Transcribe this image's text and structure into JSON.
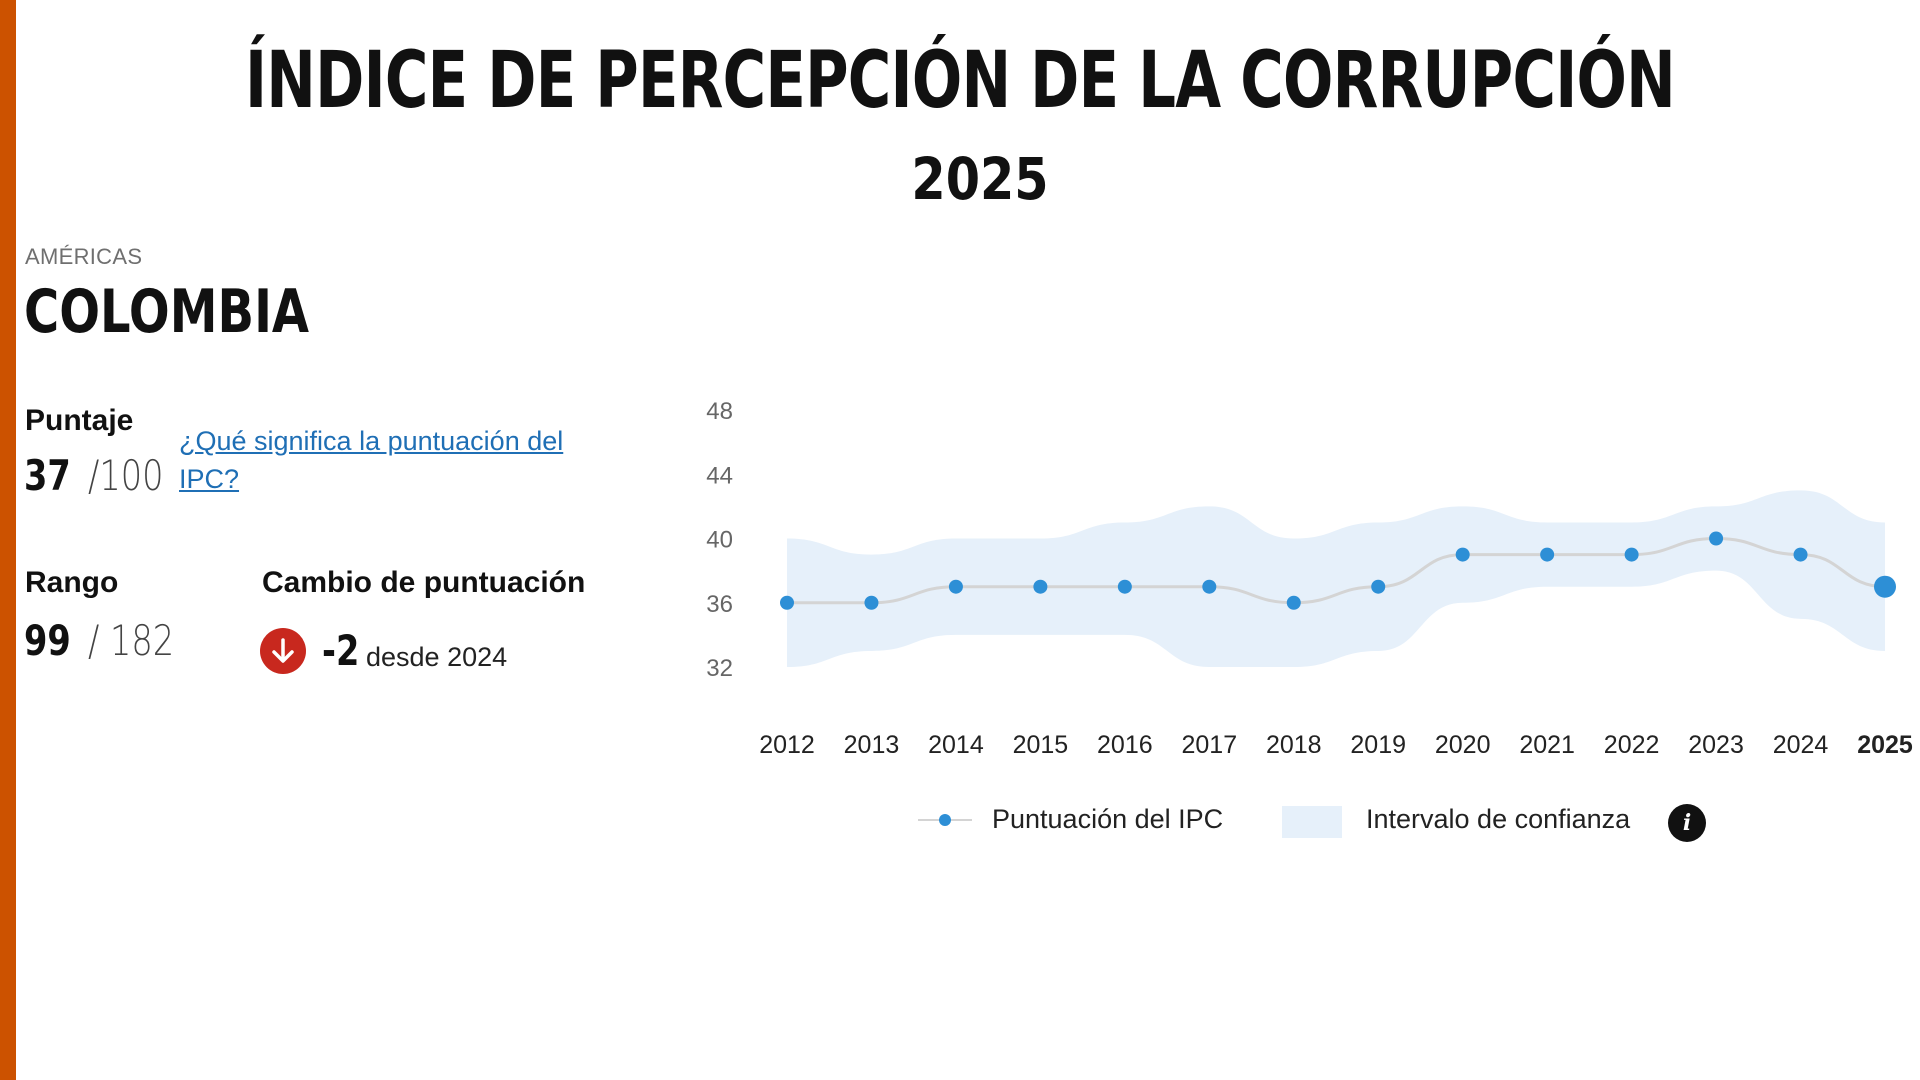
{
  "header": {
    "title": "ÍNDICE DE PERCEPCIÓN DE LA CORRUPCIÓN",
    "year": "2025"
  },
  "country": {
    "region": "AMÉRICAS",
    "name": "COLOMBIA"
  },
  "score": {
    "label": "Puntaje",
    "value": "37",
    "max": "/100",
    "link_text": "¿Qué significa la puntuación del IPC?"
  },
  "rank": {
    "label": "Rango",
    "value": "99",
    "total": "/ 182"
  },
  "change": {
    "label": "Cambio de puntuación",
    "value": "-2",
    "since": "desde 2024"
  },
  "legend": {
    "score_label": "Puntuación del IPC",
    "ci_label": "Intervalo de confianza",
    "info_glyph": "i"
  },
  "colors": {
    "accent": "#cc5200",
    "point": "#2d8fd6",
    "line": "#d4d4d4",
    "band": "#e6f0fa",
    "change_down": "#c8281e"
  },
  "chart_data": {
    "type": "line",
    "title": "",
    "xlabel": "",
    "ylabel": "",
    "categories": [
      "2012",
      "2013",
      "2014",
      "2015",
      "2016",
      "2017",
      "2018",
      "2019",
      "2020",
      "2021",
      "2022",
      "2023",
      "2024",
      "2025"
    ],
    "ylim": [
      32,
      48
    ],
    "yticks": [
      32,
      36,
      40,
      44,
      48
    ],
    "series": [
      {
        "name": "Puntuación del IPC",
        "values": [
          36,
          36,
          37,
          37,
          37,
          37,
          36,
          37,
          39,
          39,
          39,
          40,
          39,
          37
        ]
      }
    ],
    "confidence_interval": {
      "name": "Intervalo de confianza",
      "upper": [
        40,
        39,
        40,
        40,
        41,
        42,
        40,
        41,
        42,
        41,
        41,
        42,
        43,
        41
      ],
      "lower": [
        32,
        33,
        34,
        34,
        34,
        32,
        32,
        33,
        36,
        37,
        37,
        38,
        35,
        33
      ]
    },
    "highlight_category": "2025",
    "legend_position": "bottom"
  }
}
